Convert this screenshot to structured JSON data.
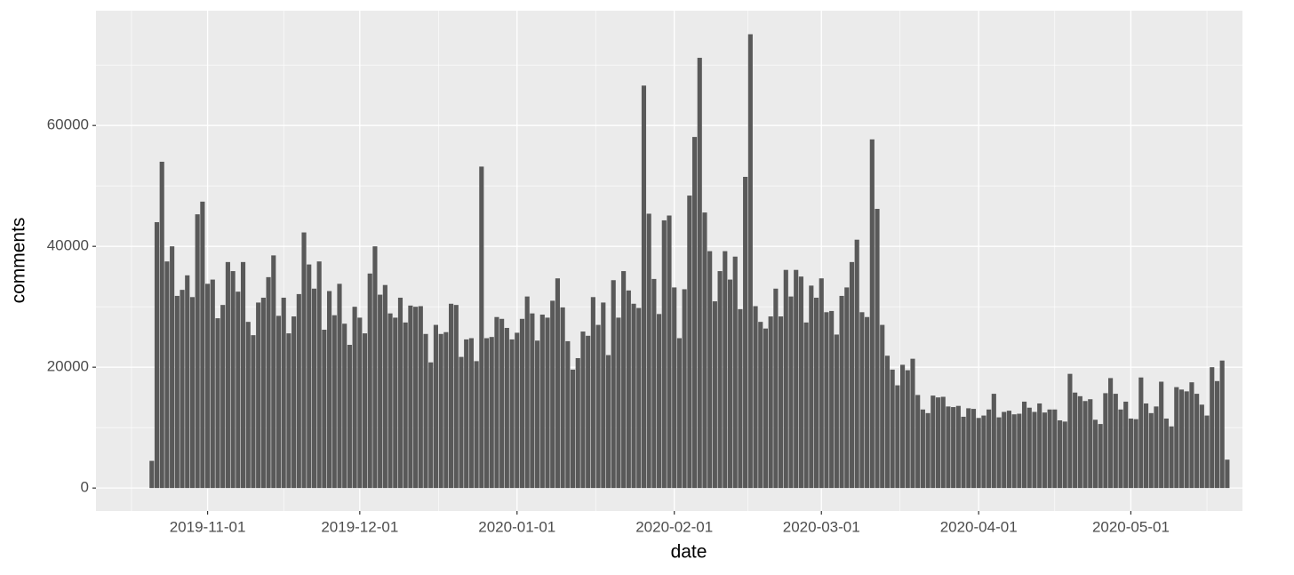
{
  "chart_data": {
    "type": "bar",
    "x_label": "date",
    "y_label": "comments",
    "color": "#595959",
    "grid": true,
    "xlim": [
      "2019-10-10",
      "2020-05-23"
    ],
    "ylim": [
      -3800,
      79000
    ],
    "xticks": [
      "2019-11-01",
      "2019-12-01",
      "2020-01-01",
      "2020-02-01",
      "2020-03-01",
      "2020-04-01",
      "2020-05-01"
    ],
    "yticks": [
      0,
      20000,
      40000,
      60000
    ],
    "x": [
      "2019-10-21",
      "2019-10-22",
      "2019-10-23",
      "2019-10-24",
      "2019-10-25",
      "2019-10-26",
      "2019-10-27",
      "2019-10-28",
      "2019-10-29",
      "2019-10-30",
      "2019-10-31",
      "2019-11-01",
      "2019-11-02",
      "2019-11-03",
      "2019-11-04",
      "2019-11-05",
      "2019-11-06",
      "2019-11-07",
      "2019-11-08",
      "2019-11-09",
      "2019-11-10",
      "2019-11-11",
      "2019-11-12",
      "2019-11-13",
      "2019-11-14",
      "2019-11-15",
      "2019-11-16",
      "2019-11-17",
      "2019-11-18",
      "2019-11-19",
      "2019-11-20",
      "2019-11-21",
      "2019-11-22",
      "2019-11-23",
      "2019-11-24",
      "2019-11-25",
      "2019-11-26",
      "2019-11-27",
      "2019-11-28",
      "2019-11-29",
      "2019-11-30",
      "2019-12-01",
      "2019-12-02",
      "2019-12-03",
      "2019-12-04",
      "2019-12-05",
      "2019-12-06",
      "2019-12-07",
      "2019-12-08",
      "2019-12-09",
      "2019-12-10",
      "2019-12-11",
      "2019-12-12",
      "2019-12-13",
      "2019-12-14",
      "2019-12-15",
      "2019-12-16",
      "2019-12-17",
      "2019-12-18",
      "2019-12-19",
      "2019-12-20",
      "2019-12-21",
      "2019-12-22",
      "2019-12-23",
      "2019-12-24",
      "2019-12-25",
      "2019-12-26",
      "2019-12-27",
      "2019-12-28",
      "2019-12-29",
      "2019-12-30",
      "2019-12-31",
      "2020-01-01",
      "2020-01-02",
      "2020-01-03",
      "2020-01-04",
      "2020-01-05",
      "2020-01-06",
      "2020-01-07",
      "2020-01-08",
      "2020-01-09",
      "2020-01-10",
      "2020-01-11",
      "2020-01-12",
      "2020-01-13",
      "2020-01-14",
      "2020-01-15",
      "2020-01-16",
      "2020-01-17",
      "2020-01-18",
      "2020-01-19",
      "2020-01-20",
      "2020-01-21",
      "2020-01-22",
      "2020-01-23",
      "2020-01-24",
      "2020-01-25",
      "2020-01-26",
      "2020-01-27",
      "2020-01-28",
      "2020-01-29",
      "2020-01-30",
      "2020-01-31",
      "2020-02-01",
      "2020-02-02",
      "2020-02-03",
      "2020-02-04",
      "2020-02-05",
      "2020-02-06",
      "2020-02-07",
      "2020-02-08",
      "2020-02-09",
      "2020-02-10",
      "2020-02-11",
      "2020-02-12",
      "2020-02-13",
      "2020-02-14",
      "2020-02-15",
      "2020-02-16",
      "2020-02-17",
      "2020-02-18",
      "2020-02-19",
      "2020-02-20",
      "2020-02-21",
      "2020-02-22",
      "2020-02-23",
      "2020-02-24",
      "2020-02-25",
      "2020-02-26",
      "2020-02-27",
      "2020-02-28",
      "2020-02-29",
      "2020-03-01",
      "2020-03-02",
      "2020-03-03",
      "2020-03-04",
      "2020-03-05",
      "2020-03-06",
      "2020-03-07",
      "2020-03-08",
      "2020-03-09",
      "2020-03-10",
      "2020-03-11",
      "2020-03-12",
      "2020-03-13",
      "2020-03-14",
      "2020-03-15",
      "2020-03-16",
      "2020-03-17",
      "2020-03-18",
      "2020-03-19",
      "2020-03-20",
      "2020-03-21",
      "2020-03-22",
      "2020-03-23",
      "2020-03-24",
      "2020-03-25",
      "2020-03-26",
      "2020-03-27",
      "2020-03-28",
      "2020-03-29",
      "2020-03-30",
      "2020-03-31",
      "2020-04-01",
      "2020-04-02",
      "2020-04-03",
      "2020-04-04",
      "2020-04-05",
      "2020-04-06",
      "2020-04-07",
      "2020-04-08",
      "2020-04-09",
      "2020-04-10",
      "2020-04-11",
      "2020-04-12",
      "2020-04-13",
      "2020-04-14",
      "2020-04-15",
      "2020-04-16",
      "2020-04-17",
      "2020-04-18",
      "2020-04-19",
      "2020-04-20",
      "2020-04-21",
      "2020-04-22",
      "2020-04-23",
      "2020-04-24",
      "2020-04-25",
      "2020-04-26",
      "2020-04-27",
      "2020-04-28",
      "2020-04-29",
      "2020-04-30",
      "2020-05-01",
      "2020-05-02",
      "2020-05-03",
      "2020-05-04",
      "2020-05-05",
      "2020-05-06",
      "2020-05-07",
      "2020-05-08",
      "2020-05-09",
      "2020-05-10",
      "2020-05-11",
      "2020-05-12",
      "2020-05-13",
      "2020-05-14",
      "2020-05-15",
      "2020-05-16",
      "2020-05-17",
      "2020-05-18",
      "2020-05-19",
      "2020-05-20"
    ],
    "values": [
      4500,
      44000,
      54000,
      37500,
      40000,
      31800,
      32800,
      35200,
      31600,
      45300,
      47400,
      33800,
      34500,
      28100,
      30300,
      37400,
      35900,
      32500,
      37400,
      27500,
      25300,
      30700,
      31500,
      34900,
      38500,
      28500,
      31500,
      25600,
      28400,
      32100,
      42300,
      37000,
      33000,
      37500,
      26200,
      32600,
      28600,
      33800,
      27200,
      23700,
      30000,
      28200,
      25600,
      35500,
      40000,
      32000,
      33600,
      28900,
      28200,
      31500,
      27400,
      30200,
      30000,
      30100,
      25500,
      20800,
      27000,
      25500,
      25800,
      30500,
      30300,
      21700,
      24600,
      24800,
      21000,
      53200,
      24800,
      25000,
      28300,
      28000,
      26500,
      24600,
      25700,
      28000,
      31700,
      28900,
      24400,
      28700,
      28200,
      31000,
      34700,
      29900,
      24300,
      19600,
      21500,
      25900,
      25200,
      31600,
      27000,
      30700,
      22000,
      34400,
      28200,
      35900,
      32700,
      30500,
      29800,
      66600,
      45400,
      34600,
      28800,
      44300,
      45100,
      33200,
      24800,
      32900,
      48400,
      58100,
      71200,
      45600,
      39200,
      30900,
      35900,
      39200,
      34500,
      38300,
      29600,
      51500,
      75100,
      30100,
      27500,
      26400,
      28400,
      33000,
      28400,
      36100,
      31700,
      36100,
      35000,
      27400,
      33500,
      31500,
      34700,
      29100,
      29300,
      25400,
      31800,
      33200,
      37400,
      41100,
      29100,
      28300,
      57700,
      46200,
      27000,
      21900,
      19600,
      17000,
      20400,
      19500,
      21400,
      15400,
      13000,
      12400,
      15300,
      15000,
      15100,
      13500,
      13400,
      13600,
      11800,
      13200,
      13100,
      11600,
      12000,
      13000,
      15600,
      11700,
      12600,
      12800,
      12200,
      12300,
      14300,
      13300,
      12600,
      14000,
      12500,
      13000,
      13000,
      11200,
      11000,
      18900,
      15800,
      15200,
      14400,
      14700,
      11300,
      10600,
      15700,
      18200,
      15600,
      13000,
      14300,
      11500,
      11400,
      18300,
      14000,
      12400,
      13500,
      17600,
      11500,
      10200,
      16700,
      16300,
      16000,
      17500,
      15600,
      13800,
      12000,
      20000,
      17700,
      21100,
      4700
    ]
  }
}
